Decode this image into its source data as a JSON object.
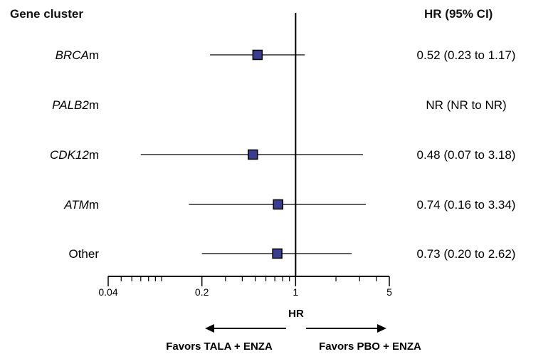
{
  "header": {
    "left": "Gene  cluster",
    "right": "HR (95% CI)"
  },
  "chart_data": {
    "type": "forest",
    "xlabel": "HR",
    "xscale": "log",
    "xlim": [
      0.04,
      5
    ],
    "ticks": [
      {
        "value": 0.04,
        "label": "0.04"
      },
      {
        "value": 0.2,
        "label": "0.2"
      },
      {
        "value": 1,
        "label": "1"
      },
      {
        "value": 5,
        "label": "5"
      }
    ],
    "reference_line": 1,
    "marker_color": "#3a3d8f",
    "rows": [
      {
        "italic": "BRCA",
        "suffix": "m",
        "hr": 0.52,
        "lo": 0.23,
        "hi": 1.17,
        "text": "0.52 (0.23 to 1.17)"
      },
      {
        "italic": "PALB2",
        "suffix": "m",
        "hr": null,
        "lo": null,
        "hi": null,
        "text": "NR (NR to NR)"
      },
      {
        "italic": "CDK12",
        "suffix": "m",
        "hr": 0.48,
        "lo": 0.07,
        "hi": 3.18,
        "text": "0.48 (0.07 to 3.18)"
      },
      {
        "italic": "ATM",
        "suffix": "m",
        "hr": 0.74,
        "lo": 0.16,
        "hi": 3.34,
        "text": "0.74 (0.16 to 3.34)"
      },
      {
        "italic": "",
        "suffix": "Other",
        "hr": 0.73,
        "lo": 0.2,
        "hi": 2.62,
        "text": "0.73 (0.20 to 2.62)"
      }
    ],
    "favors_left": "Favors TALA + ENZA",
    "favors_right": "Favors PBO + ENZA"
  }
}
